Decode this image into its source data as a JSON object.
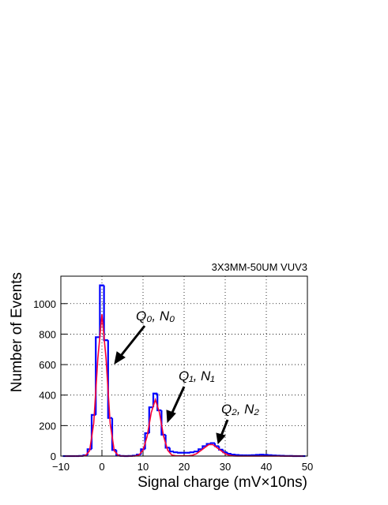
{
  "chart_data": {
    "type": "histogram",
    "title": "3X3MM-50UM VUV3",
    "x_label": "Signal charge (mV×10ns)",
    "y_label": "Number of Events",
    "bins": [
      -9.5,
      -8.5,
      -7.5,
      -6.5,
      -5.5,
      -4.5,
      -3.5,
      -2.5,
      -1.5,
      -0.5,
      0.5,
      1.5,
      2.5,
      3.5,
      4.5,
      5.5,
      6.5,
      7.5,
      8.5,
      9.5,
      10.5,
      11.5,
      12.5,
      13.5,
      14.5,
      15.5,
      16.5,
      17.5,
      18.5,
      19.5,
      20.5,
      21.5,
      22.5,
      23.5,
      24.5,
      25.5,
      26.5,
      27.5,
      28.5,
      29.5,
      30.5,
      31.5,
      32.5,
      33.5,
      34.5,
      35.5,
      36.5,
      37.5,
      38.5,
      39.5,
      40.5,
      41.5,
      42.5,
      43.5,
      44.5,
      45.5,
      46.5,
      47.5,
      48.5,
      49.5
    ],
    "counts": [
      0,
      0,
      0,
      0,
      1,
      5,
      45,
      270,
      780,
      1120,
      760,
      250,
      40,
      5,
      1,
      0,
      1,
      3,
      10,
      45,
      150,
      320,
      410,
      300,
      140,
      55,
      30,
      25,
      22,
      22,
      22,
      25,
      30,
      45,
      65,
      80,
      85,
      65,
      42,
      25,
      15,
      10,
      7,
      5,
      5,
      5,
      6,
      8,
      9,
      8,
      6,
      4,
      3,
      2,
      1,
      1,
      0,
      0,
      0
    ],
    "color": "#0000ff",
    "fit": {
      "color": "#ff0033",
      "x": [
        -9,
        -8,
        -7,
        -6,
        -5,
        -4,
        -3,
        -2,
        -1,
        0,
        1,
        2,
        3,
        4,
        5,
        6,
        7,
        8,
        9,
        10,
        11,
        12,
        13,
        14,
        15,
        16,
        17,
        18,
        19,
        20,
        21,
        22,
        23,
        24,
        25,
        26,
        27,
        28,
        29,
        30,
        31,
        32,
        33,
        34,
        35,
        36,
        37,
        38,
        39,
        40,
        41,
        42,
        43,
        44,
        45,
        46,
        47,
        48,
        49
      ],
      "values": [
        0,
        0,
        0,
        0,
        0,
        3,
        35,
        215,
        640,
        930,
        640,
        215,
        35,
        3,
        0,
        0,
        0,
        0,
        7,
        38,
        130,
        285,
        370,
        285,
        130,
        38,
        7,
        2,
        2,
        2,
        2,
        5,
        15,
        35,
        55,
        75,
        75,
        55,
        35,
        15,
        5,
        1,
        0,
        0,
        0,
        0,
        0,
        0,
        0,
        0,
        0,
        0,
        0,
        0,
        0,
        0,
        0,
        0,
        0
      ]
    },
    "xlim": [
      -10,
      50
    ],
    "ylim": [
      0,
      1180
    ],
    "xticks": [
      {
        "value": -10,
        "label": "−10"
      },
      0,
      10,
      20,
      30,
      40,
      50
    ],
    "yticks": [
      0,
      200,
      400,
      600,
      800,
      1000
    ],
    "grid": true,
    "annotations": [
      "Q₀, N₀",
      "Q₁, N₁",
      "Q₂, N₂"
    ]
  }
}
